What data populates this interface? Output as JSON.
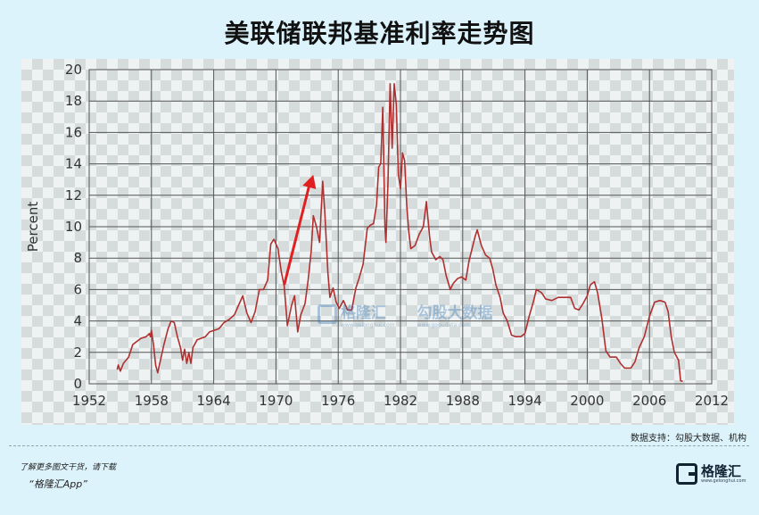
{
  "title": "美联储联邦基准利率走势图",
  "chart_data": {
    "type": "line",
    "ylabel": "Percent",
    "xlim": [
      1952,
      2012
    ],
    "ylim": [
      0,
      20
    ],
    "x_ticks": [
      1952,
      1958,
      1964,
      1970,
      1976,
      1982,
      1988,
      1994,
      2000,
      2006,
      2012
    ],
    "y_ticks": [
      0,
      2,
      4,
      6,
      8,
      10,
      12,
      14,
      16,
      18,
      20
    ],
    "grid": true,
    "series": [
      {
        "color": "#b03030",
        "points": [
          [
            1954.7,
            0.9
          ],
          [
            1954.8,
            1.2
          ],
          [
            1955.0,
            0.8
          ],
          [
            1955.3,
            1.3
          ],
          [
            1955.8,
            1.7
          ],
          [
            1956.2,
            2.5
          ],
          [
            1956.6,
            2.7
          ],
          [
            1957.0,
            2.9
          ],
          [
            1957.5,
            3.0
          ],
          [
            1957.8,
            3.2
          ],
          [
            1957.9,
            3.0
          ],
          [
            1958.0,
            3.4
          ],
          [
            1958.2,
            2.5
          ],
          [
            1958.4,
            1.2
          ],
          [
            1958.6,
            0.7
          ],
          [
            1958.9,
            1.6
          ],
          [
            1959.2,
            2.5
          ],
          [
            1959.6,
            3.5
          ],
          [
            1959.9,
            4.0
          ],
          [
            1960.2,
            3.9
          ],
          [
            1960.5,
            3.0
          ],
          [
            1960.8,
            2.3
          ],
          [
            1961.0,
            1.5
          ],
          [
            1961.2,
            2.2
          ],
          [
            1961.4,
            1.3
          ],
          [
            1961.6,
            2.0
          ],
          [
            1961.8,
            1.3
          ],
          [
            1962.0,
            2.3
          ],
          [
            1962.4,
            2.8
          ],
          [
            1962.8,
            2.9
          ],
          [
            1963.2,
            3.0
          ],
          [
            1963.6,
            3.3
          ],
          [
            1964.0,
            3.4
          ],
          [
            1964.5,
            3.5
          ],
          [
            1965.0,
            3.9
          ],
          [
            1965.5,
            4.1
          ],
          [
            1966.0,
            4.4
          ],
          [
            1966.4,
            5.0
          ],
          [
            1966.8,
            5.6
          ],
          [
            1967.2,
            4.5
          ],
          [
            1967.6,
            3.9
          ],
          [
            1968.0,
            4.6
          ],
          [
            1968.4,
            6.0
          ],
          [
            1968.8,
            6.0
          ],
          [
            1969.2,
            6.6
          ],
          [
            1969.5,
            8.9
          ],
          [
            1969.8,
            9.2
          ],
          [
            1970.2,
            8.6
          ],
          [
            1970.5,
            7.2
          ],
          [
            1970.8,
            6.2
          ],
          [
            1971.1,
            3.7
          ],
          [
            1971.5,
            5.0
          ],
          [
            1971.8,
            5.6
          ],
          [
            1972.1,
            3.3
          ],
          [
            1972.4,
            4.4
          ],
          [
            1972.8,
            5.1
          ],
          [
            1973.1,
            6.6
          ],
          [
            1973.4,
            8.5
          ],
          [
            1973.6,
            10.7
          ],
          [
            1973.9,
            10.0
          ],
          [
            1974.2,
            9.0
          ],
          [
            1974.5,
            12.9
          ],
          [
            1974.7,
            11.0
          ],
          [
            1975.0,
            7.1
          ],
          [
            1975.2,
            5.5
          ],
          [
            1975.5,
            6.1
          ],
          [
            1975.8,
            5.2
          ],
          [
            1976.1,
            4.8
          ],
          [
            1976.5,
            5.3
          ],
          [
            1976.9,
            4.7
          ],
          [
            1977.3,
            4.7
          ],
          [
            1977.7,
            6.1
          ],
          [
            1978.0,
            6.7
          ],
          [
            1978.4,
            7.6
          ],
          [
            1978.8,
            9.9
          ],
          [
            1979.1,
            10.1
          ],
          [
            1979.4,
            10.2
          ],
          [
            1979.7,
            11.4
          ],
          [
            1979.9,
            13.8
          ],
          [
            1980.1,
            14.0
          ],
          [
            1980.3,
            17.6
          ],
          [
            1980.5,
            10.0
          ],
          [
            1980.6,
            9.0
          ],
          [
            1980.8,
            12.8
          ],
          [
            1980.9,
            15.9
          ],
          [
            1981.0,
            19.1
          ],
          [
            1981.2,
            15.0
          ],
          [
            1981.4,
            19.1
          ],
          [
            1981.6,
            17.8
          ],
          [
            1981.8,
            13.3
          ],
          [
            1982.0,
            12.4
          ],
          [
            1982.2,
            14.7
          ],
          [
            1982.4,
            14.2
          ],
          [
            1982.6,
            11.4
          ],
          [
            1982.8,
            9.7
          ],
          [
            1983.0,
            8.6
          ],
          [
            1983.4,
            8.8
          ],
          [
            1983.8,
            9.5
          ],
          [
            1984.2,
            10.0
          ],
          [
            1984.5,
            11.6
          ],
          [
            1984.8,
            9.4
          ],
          [
            1985.0,
            8.4
          ],
          [
            1985.4,
            7.9
          ],
          [
            1985.8,
            8.1
          ],
          [
            1986.1,
            7.9
          ],
          [
            1986.4,
            6.9
          ],
          [
            1986.8,
            6.0
          ],
          [
            1987.1,
            6.4
          ],
          [
            1987.5,
            6.7
          ],
          [
            1987.9,
            6.8
          ],
          [
            1988.3,
            6.6
          ],
          [
            1988.6,
            7.8
          ],
          [
            1988.9,
            8.6
          ],
          [
            1989.2,
            9.4
          ],
          [
            1989.4,
            9.8
          ],
          [
            1989.8,
            8.8
          ],
          [
            1990.2,
            8.2
          ],
          [
            1990.6,
            8.0
          ],
          [
            1990.9,
            7.3
          ],
          [
            1991.2,
            6.3
          ],
          [
            1991.6,
            5.5
          ],
          [
            1991.9,
            4.5
          ],
          [
            1992.3,
            4.0
          ],
          [
            1992.7,
            3.1
          ],
          [
            1993.1,
            3.0
          ],
          [
            1993.6,
            3.0
          ],
          [
            1994.0,
            3.2
          ],
          [
            1994.4,
            4.3
          ],
          [
            1994.8,
            5.2
          ],
          [
            1995.1,
            6.0
          ],
          [
            1995.6,
            5.8
          ],
          [
            1996.0,
            5.4
          ],
          [
            1996.6,
            5.3
          ],
          [
            1997.2,
            5.5
          ],
          [
            1997.8,
            5.5
          ],
          [
            1998.4,
            5.5
          ],
          [
            1998.8,
            4.8
          ],
          [
            1999.2,
            4.7
          ],
          [
            1999.6,
            5.1
          ],
          [
            2000.0,
            5.6
          ],
          [
            2000.3,
            6.3
          ],
          [
            2000.7,
            6.5
          ],
          [
            2001.0,
            5.8
          ],
          [
            2001.4,
            4.2
          ],
          [
            2001.8,
            2.1
          ],
          [
            2002.2,
            1.7
          ],
          [
            2002.8,
            1.7
          ],
          [
            2003.2,
            1.3
          ],
          [
            2003.6,
            1.0
          ],
          [
            2004.2,
            1.0
          ],
          [
            2004.6,
            1.4
          ],
          [
            2005.0,
            2.3
          ],
          [
            2005.5,
            3.0
          ],
          [
            2006.0,
            4.3
          ],
          [
            2006.5,
            5.2
          ],
          [
            2007.0,
            5.3
          ],
          [
            2007.5,
            5.2
          ],
          [
            2007.8,
            4.6
          ],
          [
            2008.1,
            3.0
          ],
          [
            2008.4,
            2.0
          ],
          [
            2008.8,
            1.5
          ],
          [
            2009.0,
            0.2
          ],
          [
            2009.2,
            0.15
          ]
        ]
      }
    ]
  },
  "watermark": {
    "brand_cn": "格隆汇",
    "brand_url": "www.gelonghui.com",
    "partner_cn": "勾股大数据",
    "partner_url": "www.gogudata.com"
  },
  "annotation_arrow_color": "#e02020",
  "footer": {
    "source": "数据支持：勾股大数据、机构",
    "promo_line1": "了解更多图文干货，请下载",
    "promo_line2": "“格隆汇App”",
    "brand_name": "格隆汇",
    "brand_url": "www.gelonghui.com"
  }
}
